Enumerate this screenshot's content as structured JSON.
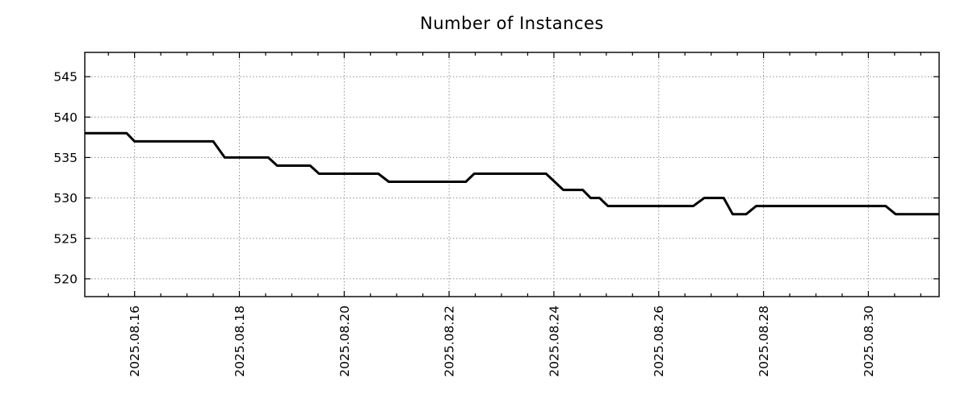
{
  "page": {
    "background": "#ffffff"
  },
  "chart_data": {
    "type": "line",
    "title": "Number of Instances",
    "xlabel": "",
    "ylabel": "",
    "grid": true,
    "legend": "none",
    "line_color": "#000000",
    "line_width": 3,
    "grid_color": "#909090",
    "axis_color": "#000000",
    "text_color": "#000000",
    "x_axis": {
      "unit": "day of 2025.08 (fractional)",
      "range": [
        15.05,
        31.35
      ],
      "major_tick_days": [
        16,
        18,
        20,
        22,
        24,
        26,
        28,
        30
      ],
      "major_tick_labels": [
        "2025.08.16",
        "2025.08.18",
        "2025.08.20",
        "2025.08.22",
        "2025.08.24",
        "2025.08.26",
        "2025.08.28",
        "2025.08.30"
      ],
      "minor_tick_step": 0.5
    },
    "y_axis": {
      "range": [
        517.8,
        548
      ],
      "ticks": [
        520,
        525,
        530,
        535,
        540,
        545
      ]
    },
    "points": [
      [
        15.05,
        538
      ],
      [
        15.85,
        538
      ],
      [
        16.0,
        537
      ],
      [
        17.5,
        537
      ],
      [
        17.72,
        535
      ],
      [
        18.55,
        535
      ],
      [
        18.72,
        534
      ],
      [
        19.35,
        534
      ],
      [
        19.52,
        533
      ],
      [
        20.65,
        533
      ],
      [
        20.85,
        532
      ],
      [
        22.32,
        532
      ],
      [
        22.48,
        533
      ],
      [
        23.85,
        533
      ],
      [
        24.18,
        531
      ],
      [
        24.55,
        531
      ],
      [
        24.7,
        530
      ],
      [
        24.87,
        530
      ],
      [
        25.03,
        529
      ],
      [
        26.66,
        529
      ],
      [
        26.87,
        530
      ],
      [
        27.24,
        530
      ],
      [
        27.41,
        528
      ],
      [
        27.67,
        528
      ],
      [
        27.86,
        529
      ],
      [
        30.33,
        529
      ],
      [
        30.52,
        528
      ],
      [
        31.35,
        528
      ]
    ]
  }
}
